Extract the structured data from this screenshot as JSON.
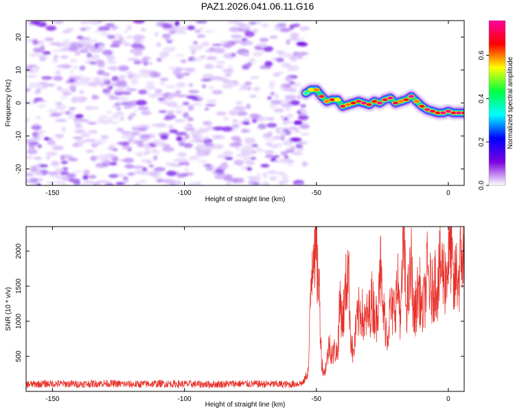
{
  "title": "PAZ1.2026.041.06.11.G16",
  "chart_data": [
    {
      "type": "heatmap",
      "name": "spectrogram",
      "xlabel": "Height of straight line (km)",
      "ylabel": "Frequency (Hz)",
      "xlim": [
        -160,
        6
      ],
      "ylim": [
        -25,
        25
      ],
      "x_ticks": [
        -150,
        -100,
        -50,
        0
      ],
      "x_tick_labels": [
        "-150",
        "-100",
        "-50",
        "0"
      ],
      "y_ticks": [
        -20,
        -10,
        0,
        10,
        20
      ],
      "y_tick_labels": [
        "-20",
        "-10",
        "0",
        "10",
        "20"
      ],
      "noise_region_xlim": [
        -160,
        -54
      ],
      "signal_track": {
        "x": [
          -54,
          -52,
          -50,
          -48,
          -46,
          -44,
          -42,
          -40,
          -38,
          -36,
          -34,
          -32,
          -30,
          -28,
          -26,
          -24,
          -22,
          -20,
          -18,
          -16,
          -14,
          -12,
          -10,
          -8,
          -6,
          -4,
          -2,
          0,
          2,
          4,
          6
        ],
        "freq": [
          3,
          4,
          4,
          2,
          0.5,
          1,
          1,
          -1,
          -0.5,
          0,
          0.5,
          0,
          -0.5,
          0.5,
          0,
          1,
          1.5,
          0,
          0.5,
          1,
          2,
          0.5,
          -1,
          -2,
          -2.5,
          -3,
          -3,
          -2.5,
          -3,
          -3,
          -3
        ],
        "amplitude": [
          0.35,
          0.55,
          0.6,
          0.7,
          0.6,
          0.65,
          0.55,
          0.7,
          0.6,
          0.65,
          0.7,
          0.75,
          0.7,
          0.65,
          0.75,
          0.7,
          0.75,
          0.7,
          0.6,
          0.65,
          0.75,
          0.6,
          0.65,
          0.75,
          0.7,
          0.65,
          0.75,
          0.75,
          0.7,
          0.75,
          0.7
        ]
      },
      "colorbar": {
        "label": "Normalized spectral amplitude",
        "lim": [
          0.0,
          0.76
        ],
        "ticks": [
          0.0,
          0.2,
          0.4,
          0.6
        ],
        "tick_labels": [
          "0.0",
          "0.2",
          "0.4",
          "0.6"
        ],
        "colors": [
          "#ffffff",
          "#7b00e0",
          "#0000ff",
          "#00ffff",
          "#00ff40",
          "#ffff00",
          "#ff0000",
          "#ff00a0"
        ]
      }
    },
    {
      "type": "line",
      "name": "snr",
      "xlabel": "Height of straight line (km)",
      "ylabel": "SNR (10 * v/v)",
      "xlim": [
        -160,
        6
      ],
      "ylim": [
        0,
        2350
      ],
      "x_ticks": [
        -150,
        -100,
        -50,
        0
      ],
      "x_tick_labels": [
        "-150",
        "-100",
        "-50",
        "0"
      ],
      "y_ticks": [
        500,
        1000,
        1500,
        2000
      ],
      "y_tick_labels": [
        "500",
        "1000",
        "1500",
        "2000"
      ],
      "color": "#e8312a",
      "x": [
        -160,
        -150,
        -140,
        -130,
        -120,
        -110,
        -100,
        -90,
        -80,
        -70,
        -60,
        -55,
        -53,
        -52,
        -51,
        -50,
        -49,
        -48,
        -47,
        -46,
        -45,
        -44,
        -43,
        -42,
        -41,
        -40,
        -39,
        -38,
        -37,
        -36,
        -35,
        -34,
        -33,
        -32,
        -31,
        -30,
        -29,
        -28,
        -27,
        -26,
        -25,
        -24,
        -23,
        -22,
        -21,
        -20,
        -19,
        -18,
        -17,
        -16,
        -15,
        -14,
        -13,
        -12,
        -11,
        -10,
        -9,
        -8,
        -7,
        -6,
        -5,
        -4,
        -3,
        -2,
        -1,
        0,
        1,
        2,
        3,
        4,
        5,
        6
      ],
      "values": [
        100,
        110,
        105,
        115,
        100,
        110,
        105,
        100,
        110,
        105,
        100,
        120,
        300,
        1600,
        2300,
        1900,
        1500,
        400,
        250,
        450,
        700,
        500,
        600,
        550,
        1300,
        1000,
        1400,
        1850,
        800,
        500,
        900,
        1100,
        1200,
        950,
        1050,
        1100,
        1300,
        1150,
        1000,
        2000,
        1200,
        1000,
        800,
        1200,
        1100,
        1300,
        1500,
        1000,
        2250,
        1200,
        1400,
        1800,
        1000,
        1300,
        1500,
        1100,
        1300,
        1700,
        1500,
        1400,
        1600,
        1500,
        1800,
        1700,
        1600,
        1900,
        2100,
        1400,
        1700,
        1600,
        2000,
        1800
      ]
    }
  ]
}
